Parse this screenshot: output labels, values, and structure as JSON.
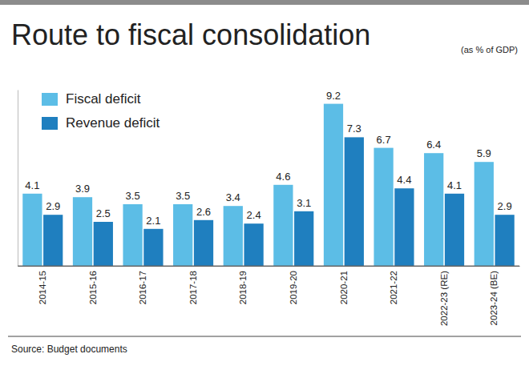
{
  "chart_data": {
    "type": "bar",
    "title": "Route to fiscal consolidation",
    "subtitle": "(as % of GDP)",
    "source": "Source: Budget documents",
    "categories": [
      "2014-15",
      "2015-16",
      "2016-17",
      "2017-18",
      "2018-19",
      "2019-20",
      "2020-21",
      "2021-22",
      "2022-23 (RE)",
      "2023-24 (BE)"
    ],
    "series": [
      {
        "name": "Fiscal deficit",
        "color": "#5cbde6",
        "values": [
          4.1,
          3.9,
          3.5,
          3.5,
          3.4,
          4.6,
          9.2,
          6.7,
          6.4,
          5.9
        ]
      },
      {
        "name": "Revenue deficit",
        "color": "#1f7fbf",
        "values": [
          2.9,
          2.5,
          2.1,
          2.6,
          2.4,
          3.1,
          7.3,
          4.4,
          4.1,
          2.9
        ]
      }
    ],
    "ylim": [
      0,
      10
    ],
    "yticks": [
      0
    ],
    "data_labels": true,
    "tick_labels": "x",
    "legend": "top-left"
  }
}
